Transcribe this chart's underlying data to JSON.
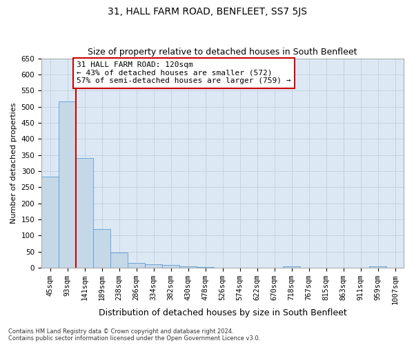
{
  "title": "31, HALL FARM ROAD, BENFLEET, SS7 5JS",
  "subtitle": "Size of property relative to detached houses in South Benfleet",
  "xlabel": "Distribution of detached houses by size in South Benfleet",
  "ylabel": "Number of detached properties",
  "footnote": "Contains HM Land Registry data © Crown copyright and database right 2024.\nContains public sector information licensed under the Open Government Licence v3.0.",
  "categories": [
    "45sqm",
    "93sqm",
    "141sqm",
    "189sqm",
    "238sqm",
    "286sqm",
    "334sqm",
    "382sqm",
    "430sqm",
    "478sqm",
    "526sqm",
    "574sqm",
    "622sqm",
    "670sqm",
    "718sqm",
    "767sqm",
    "815sqm",
    "863sqm",
    "911sqm",
    "959sqm",
    "1007sqm"
  ],
  "values": [
    283,
    516,
    340,
    120,
    48,
    15,
    10,
    8,
    5,
    3,
    0,
    0,
    0,
    0,
    5,
    0,
    0,
    0,
    0,
    5,
    0
  ],
  "bar_color": "#c5d8e8",
  "bar_edge_color": "#5b9bd5",
  "vline_color": "#cc0000",
  "vline_x": 1.5,
  "annotation_text": "31 HALL FARM ROAD: 120sqm\n← 43% of detached houses are smaller (572)\n57% of semi-detached houses are larger (759) →",
  "annotation_box_color": "white",
  "annotation_box_edge_color": "#cc0000",
  "ylim": [
    0,
    650
  ],
  "yticks": [
    0,
    50,
    100,
    150,
    200,
    250,
    300,
    350,
    400,
    450,
    500,
    550,
    600,
    650
  ],
  "grid_color": "#c0cfe0",
  "background_color": "#dce9f5",
  "title_fontsize": 10,
  "subtitle_fontsize": 9,
  "title_fontweight": "normal",
  "xlabel_fontsize": 9,
  "ylabel_fontsize": 8,
  "annot_fontsize": 8,
  "footnote_fontsize": 6,
  "tick_fontsize": 7.5
}
